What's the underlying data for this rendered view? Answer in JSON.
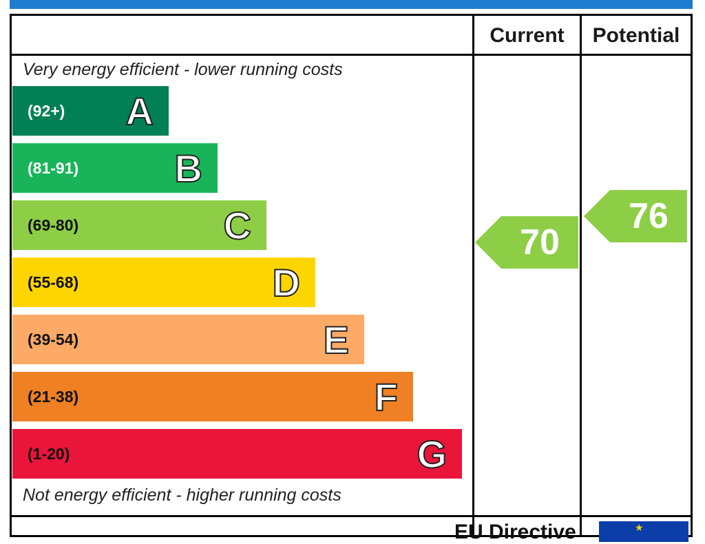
{
  "header": {
    "current_label": "Current",
    "potential_label": "Potential"
  },
  "captions": {
    "top": "Very energy efficient - lower running costs",
    "bottom": "Not energy efficient - higher running costs"
  },
  "footer": {
    "label": "EU Directive"
  },
  "chart_data": {
    "type": "bar",
    "title": "",
    "categories": [
      "A",
      "B",
      "C",
      "D",
      "E",
      "F",
      "G"
    ],
    "ranges": [
      "(92+)",
      "(81-91)",
      "(69-80)",
      "(55-68)",
      "(39-54)",
      "(21-38)",
      "(1-20)"
    ],
    "values": [
      1,
      2,
      3,
      4,
      5,
      6,
      7
    ],
    "colors": [
      "#008054",
      "#19b459",
      "#8dce46",
      "#ffd500",
      "#fcaa65",
      "#ef8023",
      "#e9153b"
    ],
    "range_text_colors": [
      "#ffffff",
      "#ffffff",
      "#111111",
      "#111111",
      "#111111",
      "#111111",
      "#111111"
    ],
    "current": {
      "value": 70,
      "band": "C",
      "color": "#8dce46"
    },
    "potential": {
      "value": 76,
      "band": "C",
      "color": "#8dce46"
    }
  }
}
